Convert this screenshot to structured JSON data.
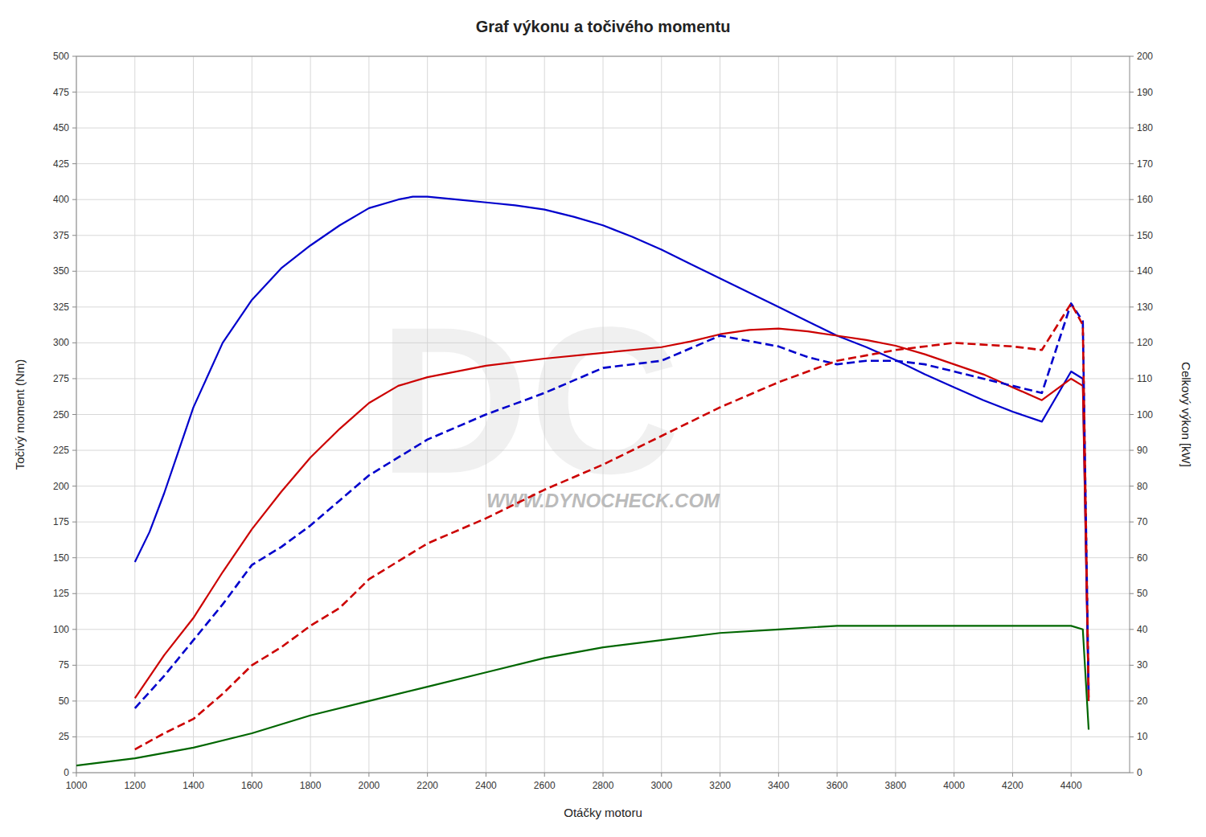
{
  "chart_data": {
    "type": "line",
    "title": "Graf výkonu a točivého momentu",
    "xlabel": "Otáčky motoru",
    "ylabel": "Točivý moment (Nm)",
    "y2label": "Celkový výkon [kW]",
    "annotations": [
      "DC",
      "WWW.DYNOCHECK.COM"
    ],
    "grid": true,
    "xlim": [
      1000,
      4600
    ],
    "ylim": [
      0,
      500
    ],
    "y2lim": [
      0,
      200
    ],
    "xticks": [
      1000,
      1200,
      1400,
      1600,
      1800,
      2000,
      2200,
      2400,
      2600,
      2800,
      3000,
      3200,
      3400,
      3600,
      3800,
      4000,
      4200,
      4400
    ],
    "yticks": [
      0,
      25,
      50,
      75,
      100,
      125,
      150,
      175,
      200,
      225,
      250,
      275,
      300,
      325,
      350,
      375,
      400,
      425,
      450,
      475,
      500
    ],
    "y2ticks": [
      0,
      10,
      20,
      30,
      40,
      50,
      60,
      70,
      80,
      90,
      100,
      110,
      120,
      130,
      140,
      150,
      160,
      170,
      180,
      190,
      200
    ],
    "series": [
      {
        "color": "#0000cc",
        "line_style": "solid",
        "x": [
          1200,
          1250,
          1300,
          1350,
          1400,
          1500,
          1600,
          1700,
          1800,
          1900,
          2000,
          2100,
          2150,
          2200,
          2300,
          2400,
          2500,
          2600,
          2700,
          2800,
          2900,
          3000,
          3100,
          3200,
          3300,
          3400,
          3500,
          3600,
          3700,
          3800,
          3900,
          4000,
          4100,
          4200,
          4300,
          4400,
          4440,
          4460
        ],
        "values": [
          147,
          168,
          195,
          225,
          255,
          300,
          330,
          352,
          368,
          382,
          394,
          400,
          402,
          402,
          400,
          398,
          396,
          393,
          388,
          382,
          374,
          365,
          355,
          345,
          335,
          325,
          315,
          305,
          297,
          288,
          278,
          269,
          260,
          252,
          245,
          280,
          275,
          50
        ]
      },
      {
        "color": "#cc0000",
        "line_style": "solid",
        "x": [
          1200,
          1250,
          1300,
          1400,
          1500,
          1600,
          1700,
          1800,
          1900,
          2000,
          2100,
          2200,
          2400,
          2600,
          2800,
          3000,
          3100,
          3200,
          3300,
          3400,
          3500,
          3600,
          3700,
          3800,
          3900,
          4000,
          4100,
          4200,
          4300,
          4400,
          4440,
          4460
        ],
        "values": [
          52,
          67,
          82,
          108,
          140,
          170,
          196,
          220,
          240,
          258,
          270,
          276,
          284,
          289,
          293,
          297,
          301,
          306,
          309,
          310,
          308,
          305,
          302,
          298,
          292,
          285,
          278,
          269,
          260,
          275,
          270,
          50
        ]
      },
      {
        "color": "#0000cc",
        "line_style": "dashed",
        "axis": "y2",
        "x": [
          1200,
          1300,
          1400,
          1500,
          1600,
          1700,
          1800,
          1900,
          2000,
          2100,
          2200,
          2400,
          2600,
          2800,
          3000,
          3200,
          3400,
          3500,
          3600,
          3700,
          3800,
          3900,
          4000,
          4100,
          4200,
          4300,
          4400,
          4440,
          4460
        ],
        "values": [
          18,
          27,
          37,
          47,
          58,
          63,
          69,
          76,
          83,
          88,
          93,
          100,
          106,
          113,
          115,
          122,
          119,
          116,
          114,
          115,
          115,
          114,
          112,
          110,
          108,
          106,
          131,
          126,
          22
        ]
      },
      {
        "color": "#cc0000",
        "line_style": "dashed",
        "axis": "y2",
        "x": [
          1200,
          1300,
          1400,
          1500,
          1600,
          1700,
          1800,
          1900,
          2000,
          2100,
          2200,
          2400,
          2600,
          2800,
          3000,
          3200,
          3400,
          3600,
          3800,
          4000,
          4200,
          4300,
          4400,
          4440,
          4460
        ],
        "values": [
          6.5,
          11,
          15,
          22,
          30,
          35,
          41,
          46,
          54,
          59,
          64,
          71,
          79,
          86,
          94,
          102,
          109,
          115,
          118,
          120,
          119,
          118,
          131,
          125,
          21
        ]
      },
      {
        "color": "#006600",
        "line_style": "solid",
        "axis": "y2",
        "x": [
          1000,
          1100,
          1200,
          1400,
          1600,
          1800,
          2000,
          2200,
          2400,
          2600,
          2800,
          3000,
          3200,
          3400,
          3600,
          3800,
          4000,
          4200,
          4400,
          4440,
          4460
        ],
        "values": [
          2,
          3,
          4,
          7,
          11,
          16,
          20,
          24,
          28,
          32,
          35,
          37,
          39,
          40,
          41,
          41,
          41,
          41,
          41,
          40,
          12
        ]
      }
    ]
  }
}
